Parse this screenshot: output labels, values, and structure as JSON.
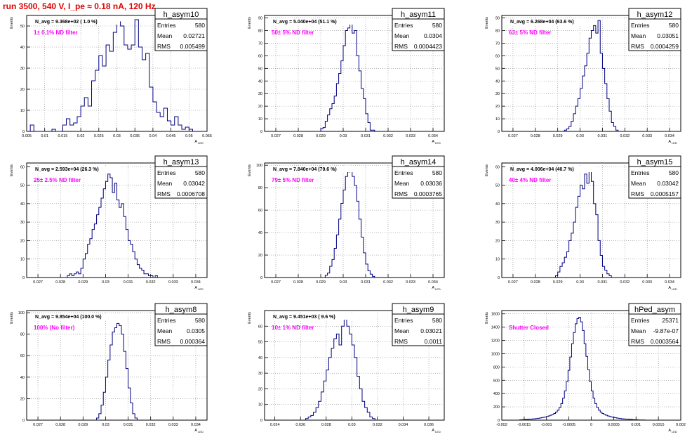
{
  "header": {
    "run_title": "run 3500,   540 V, I_pe ≈ 0.18 nA, 120 Hz"
  },
  "colors": {
    "histogram_line": "#000080",
    "annotation": "#ff00ff",
    "title_red": "#e00000",
    "grid": "#888888"
  },
  "common": {
    "ylabel": "Events",
    "xlabel": "A",
    "xlabel_subscript": "LED",
    "stat_labels": [
      "Entries",
      "Mean",
      "RMS"
    ]
  },
  "chart_data": [
    {
      "type": "histogram",
      "name": "h_asym10",
      "avg_label": "N_avg = 9.368e+02 ( 1.0 %)",
      "annotation": "1± 0.1% ND filter",
      "stats": {
        "entries": "580",
        "mean": "0.02721",
        "rms": "0.005499"
      },
      "xlim": [
        0.005,
        0.055
      ],
      "ylim": [
        0,
        55
      ],
      "xticks": [
        0.005,
        0.01,
        0.015,
        0.02,
        0.025,
        0.03,
        0.035,
        0.04,
        0.045,
        0.05,
        0.055
      ],
      "xtick_labels": [
        "0.005",
        "0.01",
        "0.015",
        "0.02",
        "0.025",
        "0.03",
        "0.035",
        "0.04",
        "0.045",
        "0.05",
        "0.055"
      ],
      "yticks": [
        0,
        10,
        20,
        30,
        40,
        50
      ],
      "bin_start": 0.005,
      "bin_width": 0.001,
      "counts": [
        0,
        3,
        0,
        0,
        0,
        0,
        0,
        1,
        0,
        0,
        3,
        6,
        3,
        4,
        7,
        12,
        16,
        12,
        24,
        29,
        36,
        31,
        41,
        38,
        47,
        52,
        50,
        41,
        39,
        41,
        53,
        40,
        34,
        37,
        21,
        14,
        9,
        7,
        11,
        5,
        3,
        7,
        3,
        1,
        2,
        1,
        0,
        0,
        0,
        0
      ]
    },
    {
      "type": "histogram",
      "name": "h_asym11",
      "avg_label": "N_avg = 5.040e+04 (51.1 %)",
      "annotation": "50± 5% ND filter",
      "stats": {
        "entries": "580",
        "mean": "0.0304",
        "rms": "0.0004423"
      },
      "xlim": [
        0.0265,
        0.0345
      ],
      "ylim": [
        0,
        92
      ],
      "xticks": [
        0.027,
        0.028,
        0.029,
        0.03,
        0.031,
        0.032,
        0.033,
        0.034
      ],
      "xtick_labels": [
        "0.027",
        "0.028",
        "0.029",
        "0.03",
        "0.031",
        "0.032",
        "0.033",
        "0.034"
      ],
      "yticks": [
        0,
        10,
        20,
        30,
        40,
        50,
        60,
        70,
        80,
        90
      ],
      "bin_start": 0.029,
      "bin_width": 0.0001,
      "counts": [
        2,
        3,
        8,
        13,
        18,
        22,
        28,
        38,
        46,
        56,
        68,
        80,
        82,
        88,
        78,
        80,
        60,
        48,
        34,
        26,
        14,
        7,
        1,
        1
      ]
    },
    {
      "type": "histogram",
      "name": "h_asym12",
      "avg_label": "N_avg = 6.268e+04 (63.6 %)",
      "annotation": "63± 5% ND filter",
      "stats": {
        "entries": "580",
        "mean": "0.03051",
        "rms": "0.0004259"
      },
      "xlim": [
        0.0265,
        0.0345
      ],
      "ylim": [
        0,
        92
      ],
      "xticks": [
        0.027,
        0.028,
        0.029,
        0.03,
        0.031,
        0.032,
        0.033,
        0.034
      ],
      "xtick_labels": [
        "0.027",
        "0.028",
        "0.029",
        "0.03",
        "0.031",
        "0.032",
        "0.033",
        "0.034"
      ],
      "yticks": [
        0,
        10,
        20,
        30,
        40,
        50,
        60,
        70,
        80,
        90
      ],
      "bin_start": 0.0293,
      "bin_width": 0.0001,
      "counts": [
        1,
        2,
        4,
        8,
        14,
        20,
        26,
        34,
        44,
        52,
        62,
        74,
        80,
        84,
        78,
        88,
        62,
        50,
        38,
        26,
        16,
        7,
        4,
        1
      ]
    },
    {
      "type": "histogram",
      "name": "h_asym13",
      "avg_label": "N_avg = 2.593e+04 (26.3 %)",
      "annotation": "25± 2.5% ND filter",
      "stats": {
        "entries": "580",
        "mean": "0.03042",
        "rms": "0.0006708"
      },
      "xlim": [
        0.0265,
        0.0345
      ],
      "ylim": [
        0,
        62
      ],
      "xticks": [
        0.027,
        0.028,
        0.029,
        0.03,
        0.031,
        0.032,
        0.033,
        0.034
      ],
      "xtick_labels": [
        "0.027",
        "0.028",
        "0.029",
        "0.03",
        "0.031",
        "0.032",
        "0.033",
        "0.034"
      ],
      "yticks": [
        0,
        10,
        20,
        30,
        40,
        50,
        60
      ],
      "bin_start": 0.0283,
      "bin_width": 0.0001,
      "counts": [
        1,
        2,
        1,
        2,
        3,
        2,
        5,
        10,
        13,
        18,
        21,
        26,
        29,
        34,
        38,
        43,
        48,
        52,
        56,
        54,
        46,
        51,
        42,
        38,
        40,
        33,
        26,
        20,
        18,
        14,
        10,
        7,
        5,
        4,
        2,
        2,
        1,
        1,
        0,
        1
      ]
    },
    {
      "type": "histogram",
      "name": "h_asym14",
      "avg_label": "N_avg = 7.840e+04 (79.6 %)",
      "annotation": "79± 5% ND filter",
      "stats": {
        "entries": "580",
        "mean": "0.03036",
        "rms": "0.0003765"
      },
      "xlim": [
        0.0265,
        0.0345
      ],
      "ylim": [
        0,
        102
      ],
      "xticks": [
        0.027,
        0.028,
        0.029,
        0.03,
        0.031,
        0.032,
        0.033,
        0.034
      ],
      "xtick_labels": [
        "0.027",
        "0.028",
        "0.029",
        "0.03",
        "0.031",
        "0.032",
        "0.033",
        "0.034"
      ],
      "yticks": [
        0,
        20,
        40,
        60,
        80,
        100
      ],
      "bin_start": 0.0292,
      "bin_width": 0.0001,
      "counts": [
        2,
        4,
        10,
        16,
        26,
        38,
        52,
        66,
        78,
        90,
        94,
        96,
        90,
        82,
        68,
        52,
        36,
        22,
        12,
        6,
        3,
        1
      ]
    },
    {
      "type": "histogram",
      "name": "h_asym15",
      "avg_label": "N_avg = 4.006e+04 (40.7 %)",
      "annotation": "40± 4% ND filter",
      "stats": {
        "entries": "580",
        "mean": "0.03042",
        "rms": "0.0005157"
      },
      "xlim": [
        0.0265,
        0.0345
      ],
      "ylim": [
        0,
        62
      ],
      "xticks": [
        0.027,
        0.028,
        0.029,
        0.03,
        0.031,
        0.032,
        0.033,
        0.034
      ],
      "xtick_labels": [
        "0.027",
        "0.028",
        "0.029",
        "0.03",
        "0.031",
        "0.032",
        "0.033",
        "0.034"
      ],
      "yticks": [
        0,
        10,
        20,
        30,
        40,
        50,
        60
      ],
      "bin_start": 0.0289,
      "bin_width": 0.0001,
      "counts": [
        1,
        3,
        6,
        8,
        11,
        14,
        20,
        24,
        30,
        38,
        44,
        50,
        48,
        56,
        51,
        58,
        52,
        40,
        34,
        20,
        12,
        6,
        4,
        2,
        1
      ]
    },
    {
      "type": "histogram",
      "name": "h_asym8",
      "avg_label": "N_avg = 9.854e+04 (100.0 %)",
      "annotation": "100% (No filter)",
      "stats": {
        "entries": "580",
        "mean": "0.0305",
        "rms": "0.000364"
      },
      "xlim": [
        0.0265,
        0.0345
      ],
      "ylim": [
        0,
        102
      ],
      "xticks": [
        0.027,
        0.028,
        0.029,
        0.03,
        0.031,
        0.032,
        0.033,
        0.034
      ],
      "xtick_labels": [
        "0.027",
        "0.028",
        "0.029",
        "0.03",
        "0.031",
        "0.032",
        "0.033",
        "0.034"
      ],
      "yticks": [
        0,
        20,
        40,
        60,
        80,
        100
      ],
      "bin_start": 0.0296,
      "bin_width": 0.0001,
      "counts": [
        2,
        6,
        14,
        26,
        40,
        56,
        70,
        82,
        86,
        90,
        88,
        80,
        64,
        48,
        30,
        16,
        6,
        2
      ]
    },
    {
      "type": "histogram",
      "name": "h_asym9",
      "avg_label": "N_avg = 9.451e+03 ( 9.6 %)",
      "annotation": "10± 1% ND filter",
      "stats": {
        "entries": "580",
        "mean": "0.03021",
        "rms": "0.0011"
      },
      "xlim": [
        0.0232,
        0.0372
      ],
      "ylim": [
        0,
        70
      ],
      "xticks": [
        0.024,
        0.026,
        0.028,
        0.03,
        0.032,
        0.034,
        0.036
      ],
      "xtick_labels": [
        "0.024",
        "0.026",
        "0.028",
        "0.03",
        "0.032",
        "0.034",
        "0.036"
      ],
      "yticks": [
        0,
        10,
        20,
        30,
        40,
        50,
        60
      ],
      "bin_start": 0.0264,
      "bin_width": 0.0002,
      "counts": [
        1,
        2,
        3,
        5,
        8,
        12,
        18,
        25,
        32,
        40,
        46,
        52,
        55,
        48,
        60,
        66,
        60,
        55,
        48,
        40,
        28,
        20,
        12,
        8,
        5,
        2,
        1
      ]
    },
    {
      "type": "histogram",
      "name": "hPed_asym",
      "avg_label": "",
      "annotation": "Shutter Closed",
      "stats": {
        "entries": "25371",
        "mean": "-9.87e-07",
        "rms": "0.0003564"
      },
      "xlim": [
        -0.002,
        0.002
      ],
      "ylim": [
        0,
        1650
      ],
      "xticks": [
        -0.002,
        -0.0015,
        -0.001,
        -0.0005,
        0,
        0.0005,
        0.001,
        0.0015,
        0.002
      ],
      "xtick_labels": [
        "-0.002",
        "-0.0015",
        "-0.001",
        "-0.0005",
        "0",
        "0.0005",
        "0.001",
        "0.0015",
        "0.002"
      ],
      "yticks": [
        0,
        200,
        400,
        600,
        800,
        1000,
        1200,
        1400,
        1600
      ],
      "bin_start": -0.0016,
      "bin_width": 4e-05,
      "counts": [
        5,
        6,
        8,
        10,
        12,
        14,
        16,
        18,
        20,
        24,
        28,
        32,
        38,
        42,
        48,
        56,
        64,
        74,
        86,
        100,
        120,
        150,
        190,
        250,
        330,
        440,
        580,
        750,
        950,
        1150,
        1320,
        1450,
        1530,
        1550,
        1480,
        1350,
        1150,
        960,
        760,
        580,
        440,
        330,
        250,
        190,
        150,
        120,
        100,
        86,
        74,
        64,
        56,
        48,
        42,
        38,
        32,
        28,
        24,
        20,
        18,
        16,
        14,
        12,
        10,
        8,
        6,
        5,
        4,
        3,
        2,
        2
      ]
    }
  ]
}
